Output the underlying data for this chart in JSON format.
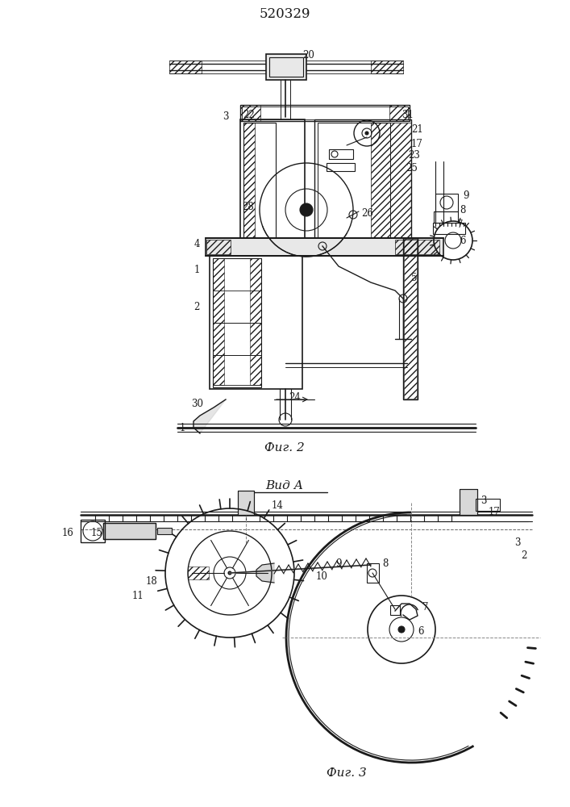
{
  "title": "520329",
  "fig2_label": "Фиг. 2",
  "fig3_label": "Фиг. 3",
  "vid_label": "Вид А",
  "bg_color": "#ffffff",
  "line_color": "#1a1a1a"
}
